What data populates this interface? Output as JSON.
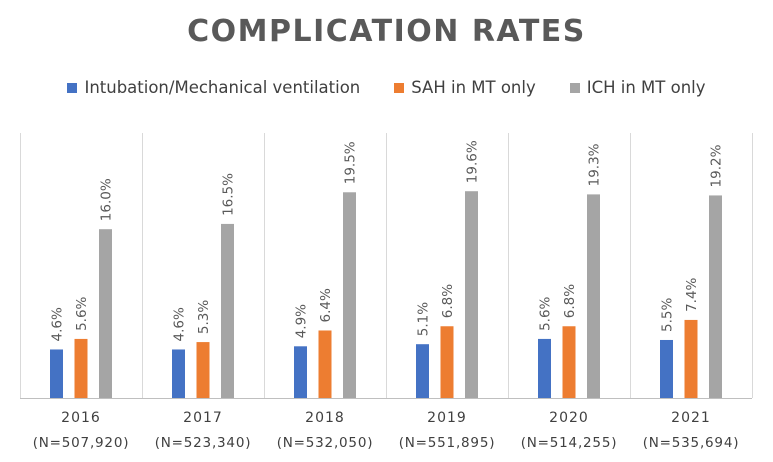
{
  "chart_data": {
    "type": "bar",
    "title": "COMPLICATION RATES",
    "categories": [
      [
        "2016",
        "(N=507,920)"
      ],
      [
        "2017",
        "(N=523,340)"
      ],
      [
        "2018",
        "(N=532,050)"
      ],
      [
        "2019",
        "(N=551,895)"
      ],
      [
        "2020",
        "(N=514,255)"
      ],
      [
        "2021",
        "(N=535,694)"
      ]
    ],
    "series": [
      {
        "name": "Intubation/Mechanical ventilation",
        "color": "#4472C4",
        "values": [
          4.6,
          4.6,
          4.9,
          5.1,
          5.6,
          5.5
        ],
        "labels": [
          "4.6%",
          "4.6%",
          "4.9%",
          "5.1%",
          "5.6%",
          "5.5%"
        ]
      },
      {
        "name": "SAH in MT only",
        "color": "#ED7D31",
        "values": [
          5.6,
          5.3,
          6.4,
          6.8,
          6.8,
          7.4
        ],
        "labels": [
          "5.6%",
          "5.3%",
          "6.4%",
          "6.8%",
          "6.8%",
          "7.4%"
        ]
      },
      {
        "name": "ICH in MT only",
        "color": "#A5A5A5",
        "values": [
          16.0,
          16.5,
          19.5,
          19.6,
          19.3,
          19.2
        ],
        "labels": [
          "16.0%",
          "16.5%",
          "19.5%",
          "19.6%",
          "19.3%",
          "19.2%"
        ]
      }
    ],
    "ylim": [
      0,
      24
    ],
    "grid": "vertical category separators",
    "legend_position": "top"
  }
}
